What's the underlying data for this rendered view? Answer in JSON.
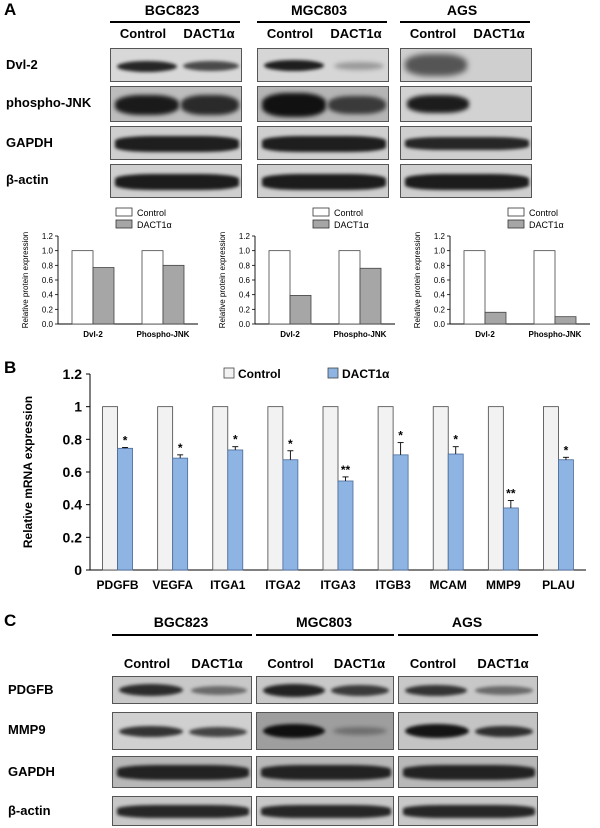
{
  "panels": {
    "a": "A",
    "b": "B",
    "c": "C"
  },
  "panel_a": {
    "cell_lines": [
      "BGC823",
      "MGC803",
      "AGS"
    ],
    "conditions": [
      "Control",
      "DACT1α"
    ],
    "rows": [
      "Dvl-2",
      "phospho-JNK",
      "GAPDH",
      "β-actin"
    ]
  },
  "panel_c": {
    "cell_lines": [
      "BGC823",
      "MGC803",
      "AGS"
    ],
    "conditions": [
      "Control",
      "DACT1α"
    ],
    "rows": [
      "PDGFB",
      "MMP9",
      "GAPDH",
      "β-actin"
    ]
  },
  "colors": {
    "control_fill": "#ffffff",
    "dact_fill_a": "#a6a6a6",
    "dact_fill_b": "#8db4e2",
    "control_fill_b": "#f2f2f2"
  },
  "chart_data": [
    {
      "type": "bar",
      "categories": [
        "Dvl-2",
        "Phospho-JNK"
      ],
      "series": [
        {
          "name": "Control",
          "values": [
            1.0,
            1.0
          ]
        },
        {
          "name": "DACT1α",
          "values": [
            0.77,
            0.8
          ]
        }
      ],
      "ylabel": "Relative protein expression",
      "ylim": [
        0,
        1.2
      ],
      "yticks": [
        "0.0",
        "0.2",
        "0.4",
        "0.6",
        "0.8",
        "1.0",
        "1.2"
      ],
      "legend": "top-right"
    },
    {
      "type": "bar",
      "categories": [
        "Dvl-2",
        "Phospho-JNK"
      ],
      "series": [
        {
          "name": "Control",
          "values": [
            1.0,
            1.0
          ]
        },
        {
          "name": "DACT1α",
          "values": [
            0.39,
            0.76
          ]
        }
      ],
      "ylabel": "Relative protein expression",
      "ylim": [
        0,
        1.2
      ],
      "yticks": [
        "0.0",
        "0.2",
        "0.4",
        "0.6",
        "0.8",
        "1.0",
        "1.2"
      ],
      "legend": "top-right"
    },
    {
      "type": "bar",
      "categories": [
        "Dvl-2",
        "Phospho-JNK"
      ],
      "series": [
        {
          "name": "Control",
          "values": [
            1.0,
            1.0
          ]
        },
        {
          "name": "DACT1α",
          "values": [
            0.16,
            0.1
          ]
        }
      ],
      "ylabel": "Relative protein expression",
      "ylim": [
        0,
        1.2
      ],
      "yticks": [
        "0.0",
        "0.2",
        "0.4",
        "0.6",
        "0.8",
        "1.0",
        "1.2"
      ],
      "legend": "top-right"
    },
    {
      "type": "bar",
      "categories": [
        "PDGFB",
        "VEGFA",
        "ITGA1",
        "ITGA2",
        "ITGA3",
        "ITGB3",
        "MCAM",
        "MMP9",
        "PLAU"
      ],
      "series": [
        {
          "name": "Control",
          "values": [
            1,
            1,
            1,
            1,
            1,
            1,
            1,
            1,
            1
          ]
        },
        {
          "name": "DACT1α",
          "values": [
            0.745,
            0.685,
            0.735,
            0.675,
            0.545,
            0.705,
            0.71,
            0.38,
            0.675
          ],
          "errors": [
            0.005,
            0.02,
            0.02,
            0.055,
            0.025,
            0.075,
            0.045,
            0.045,
            0.015
          ],
          "annotations": [
            "*",
            "*",
            "*",
            "*",
            "**",
            "*",
            "*",
            "**",
            "*"
          ]
        }
      ],
      "ylabel": "Relative mRNA expression",
      "ylim": [
        0,
        1.2
      ],
      "yticks": [
        "0",
        "0.2",
        "0.4",
        "0.6",
        "0.8",
        "1",
        "1.2"
      ],
      "legend": "top-center"
    }
  ]
}
